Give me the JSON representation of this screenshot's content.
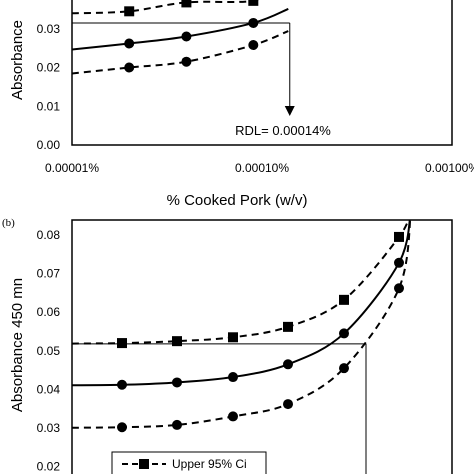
{
  "chart_data": [
    {
      "panel": "a",
      "type": "line",
      "xlabel": "% Cooked Pork (w/v)",
      "ylabel": "Absorbance",
      "x_scale": "log",
      "xlim": [
        1e-05,
        0.001
      ],
      "ylim": [
        0,
        0.04
      ],
      "y_ticks": [
        "0.00",
        "0.01",
        "0.02",
        "0.03"
      ],
      "x_ticks": [
        "0.00001%",
        "0.00010%",
        "0.00100%"
      ],
      "series": [
        {
          "style": "dashed",
          "marker": "square",
          "x": [
            2e-05,
            4e-05,
            9e-05
          ],
          "y": [
            0.0345,
            0.0368,
            0.0372
          ]
        },
        {
          "style": "solid",
          "marker": "circle",
          "x": [
            2e-05,
            4e-05,
            9e-05
          ],
          "y": [
            0.0262,
            0.028,
            0.0315
          ]
        },
        {
          "style": "dashed",
          "marker": "circle",
          "x": [
            2e-05,
            4e-05,
            9e-05
          ],
          "y": [
            0.02,
            0.0215,
            0.0258
          ]
        }
      ],
      "threshold_y": 0.0315,
      "rdl_x": 0.00014,
      "annotation": "RDL= 0.00014%"
    },
    {
      "panel": "b",
      "panel_label": "(b)",
      "type": "line",
      "ylabel": "Absorbance 450 mn",
      "ylim": [
        0.02,
        0.08
      ],
      "y_ticks": [
        "0.02",
        "0.03",
        "0.04",
        "0.05",
        "0.06",
        "0.07",
        "0.08"
      ],
      "series": [
        {
          "name": "Upper 95% Ci",
          "style": "dashed",
          "marker": "square",
          "x": [
            1,
            2,
            3,
            4,
            5,
            6
          ],
          "y": [
            0.052,
            0.0525,
            0.0535,
            0.0562,
            0.0632,
            0.0795
          ]
        },
        {
          "style": "solid",
          "marker": "circle",
          "x": [
            1,
            2,
            3,
            4,
            5,
            6
          ],
          "y": [
            0.0412,
            0.0418,
            0.0432,
            0.0465,
            0.0545,
            0.0728
          ]
        },
        {
          "style": "dashed",
          "marker": "circle",
          "x": [
            1,
            2,
            3,
            4,
            5,
            6
          ],
          "y": [
            0.0302,
            0.0308,
            0.033,
            0.0362,
            0.0455,
            0.0662
          ]
        }
      ],
      "threshold_y": 0.0518,
      "legend": [
        {
          "label": "Upper 95% Ci"
        }
      ]
    }
  ],
  "colors": {
    "line": "#000000",
    "background": "#ffffff"
  }
}
